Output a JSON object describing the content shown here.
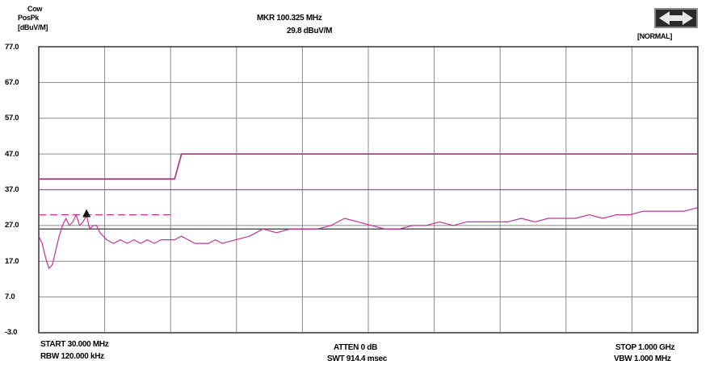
{
  "header": {
    "coupling_label": "Cow",
    "detector_label": "PosPk",
    "unit_label": "[dBuV/M]",
    "marker_freq": "MKR 100.325 MHz",
    "marker_level": "29.8 dBuV/M",
    "mode_label": "[NORMAL]",
    "nav_icon": "left-right-arrow-icon"
  },
  "footer": {
    "start": "START 30.000 MHz",
    "rbw": "RBW 120.000 kHz",
    "atten": "ATTEN 0 dB",
    "swt": "SWT 914.4 msec",
    "stop": "STOP 1.000 GHz",
    "vbw": "VBW 1.000 MHz"
  },
  "chart_data": {
    "type": "line",
    "title": "",
    "xlabel": "",
    "ylabel": "[dBuV/M]",
    "x_range_mhz": [
      30,
      1000
    ],
    "ylim": [
      -3,
      77
    ],
    "y_ticks": [
      -3.0,
      7.0,
      17.0,
      27.0,
      37.0,
      47.0,
      57.0,
      67.0,
      77.0
    ],
    "y_tick_labels": [
      "-3.0",
      "7.0",
      "17.0",
      "27.0",
      "37.0",
      "47.0",
      "57.0",
      "67.0",
      "77.0"
    ],
    "grid": true,
    "colors": {
      "trace": "#c2319c",
      "limit": "#b0407f",
      "grid": "#8a8a8a",
      "frame": "#333333"
    },
    "series": [
      {
        "kind": "limit",
        "x": [
          30,
          230,
          230,
          240,
          1000
        ],
        "y": [
          40.0,
          40.0,
          40.0,
          47.0,
          47.0
        ]
      },
      {
        "kind": "reference",
        "x": [
          30,
          1000
        ],
        "y": [
          37.0,
          37.0
        ]
      },
      {
        "kind": "reference-dashed",
        "x": [
          30,
          230
        ],
        "y": [
          30.0,
          30.0
        ]
      },
      {
        "kind": "reference-dark",
        "x": [
          30,
          1000
        ],
        "y": [
          26.0,
          26.0
        ]
      },
      {
        "kind": "trace",
        "x": [
          30,
          35,
          40,
          45,
          50,
          55,
          60,
          65,
          70,
          75,
          80,
          85,
          90,
          95,
          100.325,
          105,
          110,
          115,
          120,
          130,
          140,
          150,
          160,
          170,
          180,
          190,
          200,
          210,
          220,
          230,
          240,
          250,
          260,
          270,
          280,
          290,
          300,
          320,
          340,
          360,
          380,
          400,
          420,
          440,
          460,
          480,
          500,
          520,
          540,
          560,
          580,
          600,
          620,
          640,
          660,
          680,
          700,
          720,
          740,
          760,
          780,
          800,
          820,
          840,
          860,
          880,
          900,
          920,
          940,
          960,
          980,
          1000
        ],
        "y": [
          24,
          22,
          18,
          15,
          16,
          20,
          24,
          27,
          29,
          27,
          28,
          30,
          27,
          28,
          29.8,
          26,
          27,
          27,
          25,
          23,
          22,
          23,
          22,
          23,
          22,
          23,
          22,
          23,
          23,
          23,
          24,
          23,
          22,
          22,
          22,
          23,
          22,
          23,
          24,
          26,
          25,
          26,
          26,
          26,
          27,
          29,
          28,
          27,
          26,
          26,
          27,
          27,
          28,
          27,
          28,
          28,
          28,
          28,
          29,
          28,
          29,
          29,
          29,
          30,
          29,
          30,
          30,
          31,
          31,
          31,
          31,
          32
        ]
      }
    ],
    "marker": {
      "x": 100.325,
      "y": 29.8
    }
  }
}
